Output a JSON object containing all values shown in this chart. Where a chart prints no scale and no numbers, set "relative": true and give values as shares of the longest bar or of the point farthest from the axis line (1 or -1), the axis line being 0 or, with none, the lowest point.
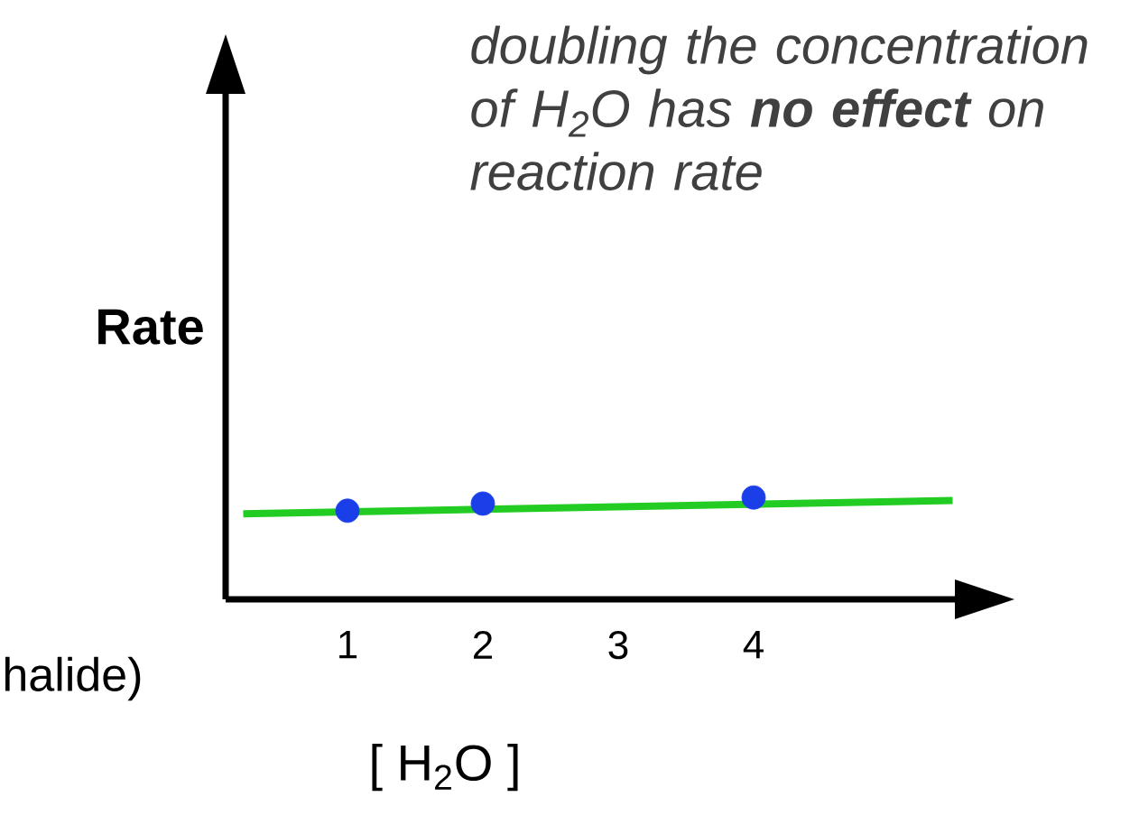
{
  "chart_data": {
    "type": "scatter",
    "relative": true,
    "xlabel": "[ H$_{2}$O ]",
    "ylabel": "Rate",
    "annotations": [
      "doubling the concentration of H$_{2}$O has **no effect** on reaction rate",
      "halide)"
    ],
    "xlim": [
      0.1,
      5.5
    ],
    "xticks": [
      1,
      2,
      3,
      4
    ],
    "tick_labels": "x",
    "marker": "circle",
    "series": [
      {
        "type": "line",
        "marker": "none",
        "color": "#22cc22",
        "x": [
          0.23,
          5.47
        ],
        "values": [
          0.84,
          0.97
        ]
      },
      {
        "color": "#1a3ee8",
        "x": [
          1,
          2,
          4
        ],
        "values": [
          0.87,
          0.94,
          1
        ]
      }
    ]
  }
}
